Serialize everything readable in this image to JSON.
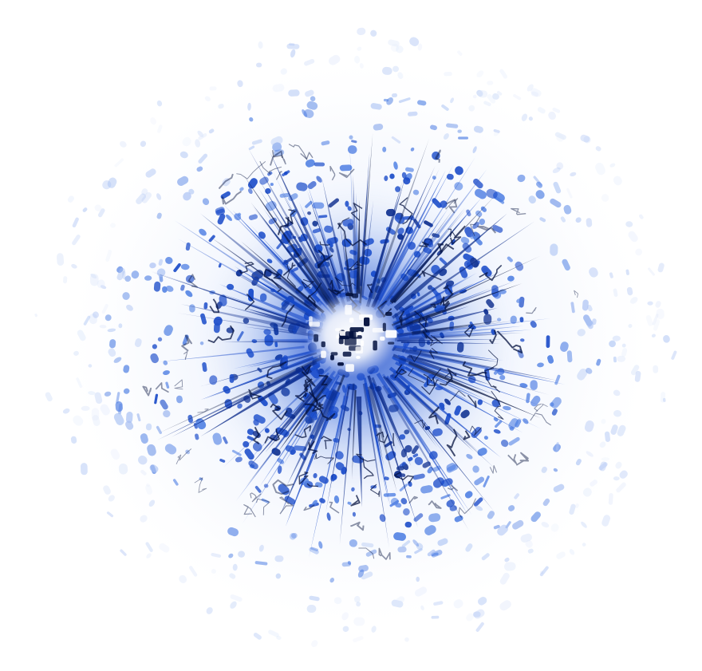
{
  "image": {
    "subject": "radial-burst",
    "palette": {
      "background": "#ffffff",
      "core_highlight": "#ffffff",
      "deep": "#04123f",
      "dark": "#0a2a8a",
      "mid": "#1648c8",
      "light": "#4f7fe3",
      "pale": "#a9c1f3",
      "faint": "#dfe8fb"
    }
  }
}
